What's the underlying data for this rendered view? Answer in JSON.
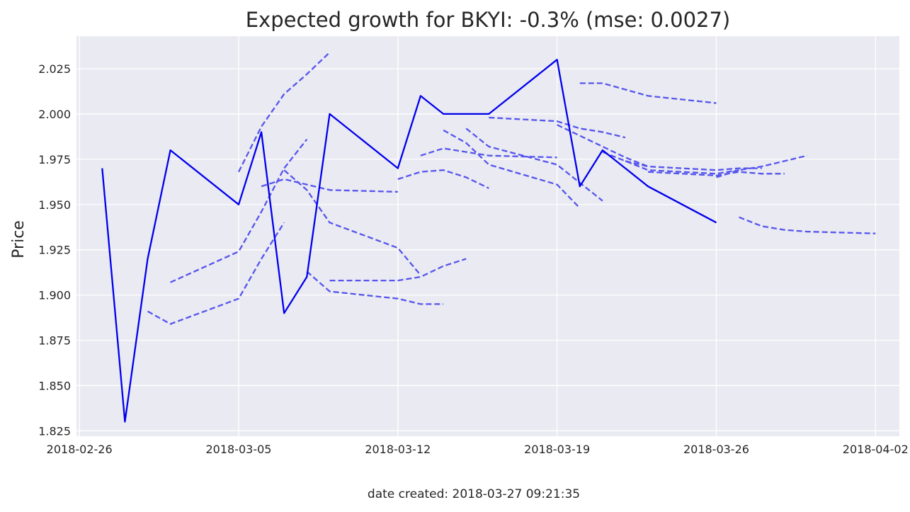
{
  "chart_data": {
    "type": "line",
    "title": "Expected growth for BKYI: -0.3% (mse: 0.0027)",
    "xlabel": "",
    "ylabel": "Price",
    "footer": "date created: 2018-03-27 09:21:35",
    "x_axis": "date",
    "xlim": [
      "2018-02-26",
      "2018-04-02"
    ],
    "ylim": [
      1.822,
      2.043
    ],
    "x_ticks": [
      "2018-02-26",
      "2018-03-05",
      "2018-03-12",
      "2018-03-19",
      "2018-03-26",
      "2018-04-02"
    ],
    "y_ticks": [
      1.825,
      1.85,
      1.875,
      1.9,
      1.925,
      1.95,
      1.975,
      2.0,
      2.025
    ],
    "y_tick_labels": [
      "1.825",
      "1.850",
      "1.875",
      "1.900",
      "1.925",
      "1.950",
      "1.975",
      "2.000",
      "2.025"
    ],
    "grid": true,
    "legend": "none",
    "colors": {
      "background": "#eaeaf2",
      "grid": "#ffffff",
      "actual": "#0000ee",
      "forecast": "#5555ee"
    },
    "series": [
      {
        "style": "solid",
        "points": [
          [
            "2018-02-27",
            1.97
          ],
          [
            "2018-02-28",
            1.83
          ],
          [
            "2018-03-01",
            1.92
          ],
          [
            "2018-03-02",
            1.98
          ],
          [
            "2018-03-05",
            1.95
          ],
          [
            "2018-03-06",
            1.99
          ],
          [
            "2018-03-07",
            1.89
          ],
          [
            "2018-03-08",
            1.91
          ],
          [
            "2018-03-09",
            2.0
          ],
          [
            "2018-03-12",
            1.97
          ],
          [
            "2018-03-13",
            2.01
          ],
          [
            "2018-03-14",
            2.0
          ],
          [
            "2018-03-15",
            2.0
          ],
          [
            "2018-03-16",
            2.0
          ],
          [
            "2018-03-19",
            2.03
          ],
          [
            "2018-03-20",
            1.96
          ],
          [
            "2018-03-21",
            1.98
          ],
          [
            "2018-03-22",
            1.97
          ],
          [
            "2018-03-23",
            1.96
          ],
          [
            "2018-03-26",
            1.94
          ]
        ]
      },
      {
        "style": "dashed",
        "points": [
          [
            "2018-03-01",
            1.891
          ],
          [
            "2018-03-02",
            1.884
          ],
          [
            "2018-03-05",
            1.898
          ],
          [
            "2018-03-06",
            1.92
          ],
          [
            "2018-03-07",
            1.94
          ]
        ]
      },
      {
        "style": "dashed",
        "points": [
          [
            "2018-03-02",
            1.907
          ],
          [
            "2018-03-05",
            1.924
          ],
          [
            "2018-03-06",
            1.946
          ],
          [
            "2018-03-07",
            1.97
          ],
          [
            "2018-03-08",
            1.986
          ]
        ]
      },
      {
        "style": "dashed",
        "points": [
          [
            "2018-03-05",
            1.968
          ],
          [
            "2018-03-06",
            1.993
          ],
          [
            "2018-03-07",
            2.011
          ],
          [
            "2018-03-08",
            2.022
          ],
          [
            "2018-03-09",
            2.034
          ]
        ]
      },
      {
        "style": "dashed",
        "points": [
          [
            "2018-03-06",
            1.96
          ],
          [
            "2018-03-07",
            1.964
          ],
          [
            "2018-03-08",
            1.961
          ],
          [
            "2018-03-09",
            1.958
          ],
          [
            "2018-03-12",
            1.957
          ]
        ]
      },
      {
        "style": "dashed",
        "points": [
          [
            "2018-03-07",
            1.969
          ],
          [
            "2018-03-08",
            1.958
          ],
          [
            "2018-03-09",
            1.94
          ],
          [
            "2018-03-12",
            1.926
          ],
          [
            "2018-03-13",
            1.911
          ]
        ]
      },
      {
        "style": "dashed",
        "points": [
          [
            "2018-03-08",
            1.913
          ],
          [
            "2018-03-09",
            1.902
          ],
          [
            "2018-03-12",
            1.898
          ],
          [
            "2018-03-13",
            1.895
          ],
          [
            "2018-03-14",
            1.895
          ]
        ]
      },
      {
        "style": "dashed",
        "points": [
          [
            "2018-03-09",
            1.908
          ],
          [
            "2018-03-12",
            1.908
          ],
          [
            "2018-03-13",
            1.91
          ],
          [
            "2018-03-14",
            1.916
          ],
          [
            "2018-03-15",
            1.92
          ]
        ]
      },
      {
        "style": "dashed",
        "points": [
          [
            "2018-03-12",
            1.964
          ],
          [
            "2018-03-13",
            1.968
          ],
          [
            "2018-03-14",
            1.969
          ],
          [
            "2018-03-15",
            1.965
          ],
          [
            "2018-03-16",
            1.959
          ]
        ]
      },
      {
        "style": "dashed",
        "points": [
          [
            "2018-03-13",
            1.977
          ],
          [
            "2018-03-14",
            1.981
          ],
          [
            "2018-03-15",
            1.979
          ],
          [
            "2018-03-16",
            1.977
          ],
          [
            "2018-03-19",
            1.976
          ]
        ]
      },
      {
        "style": "dashed",
        "points": [
          [
            "2018-03-14",
            1.991
          ],
          [
            "2018-03-15",
            1.984
          ],
          [
            "2018-03-16",
            1.972
          ],
          [
            "2018-03-19",
            1.961
          ],
          [
            "2018-03-20",
            1.948
          ]
        ]
      },
      {
        "style": "dashed",
        "points": [
          [
            "2018-03-15",
            1.992
          ],
          [
            "2018-03-16",
            1.982
          ],
          [
            "2018-03-19",
            1.972
          ],
          [
            "2018-03-20",
            1.962
          ],
          [
            "2018-03-21",
            1.952
          ]
        ]
      },
      {
        "style": "dashed",
        "points": [
          [
            "2018-03-16",
            1.998
          ],
          [
            "2018-03-19",
            1.996
          ],
          [
            "2018-03-20",
            1.992
          ],
          [
            "2018-03-21",
            1.99
          ],
          [
            "2018-03-22",
            1.987
          ]
        ]
      },
      {
        "style": "dashed",
        "points": [
          [
            "2018-03-19",
            1.994
          ],
          [
            "2018-03-20",
            1.988
          ],
          [
            "2018-03-21",
            1.982
          ],
          [
            "2018-03-22",
            1.976
          ],
          [
            "2018-03-23",
            1.971
          ]
        ]
      },
      {
        "style": "dashed",
        "points": [
          [
            "2018-03-20",
            2.017
          ],
          [
            "2018-03-21",
            2.017
          ],
          [
            "2018-03-23",
            2.01
          ],
          [
            "2018-03-26",
            2.006
          ]
        ]
      },
      {
        "style": "dashed",
        "points": [
          [
            "2018-03-21",
            1.979
          ],
          [
            "2018-03-22",
            1.974
          ],
          [
            "2018-03-23",
            1.969
          ],
          [
            "2018-03-26",
            1.967
          ],
          [
            "2018-03-27",
            1.969
          ]
        ]
      },
      {
        "style": "dashed",
        "points": [
          [
            "2018-03-22",
            1.974
          ],
          [
            "2018-03-23",
            1.971
          ],
          [
            "2018-03-26",
            1.969
          ],
          [
            "2018-03-27",
            1.97
          ],
          [
            "2018-03-28",
            1.97
          ]
        ]
      },
      {
        "style": "dashed",
        "points": [
          [
            "2018-03-23",
            1.968
          ],
          [
            "2018-03-26",
            1.966
          ],
          [
            "2018-03-27",
            1.968
          ],
          [
            "2018-03-28",
            1.967
          ],
          [
            "2018-03-29",
            1.967
          ]
        ]
      },
      {
        "style": "dashed",
        "points": [
          [
            "2018-03-26",
            1.965
          ],
          [
            "2018-03-27",
            1.969
          ],
          [
            "2018-03-28",
            1.971
          ],
          [
            "2018-03-29",
            1.974
          ],
          [
            "2018-03-30",
            1.977
          ]
        ]
      },
      {
        "style": "dashed",
        "points": [
          [
            "2018-03-27",
            1.943
          ],
          [
            "2018-03-28",
            1.938
          ],
          [
            "2018-03-29",
            1.936
          ],
          [
            "2018-03-30",
            1.935
          ],
          [
            "2018-04-02",
            1.934
          ]
        ]
      }
    ]
  }
}
